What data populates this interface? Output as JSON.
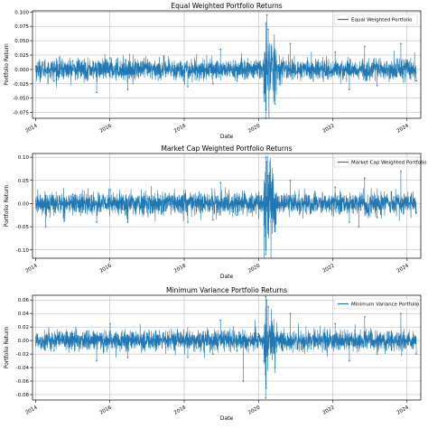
{
  "chart_data": [
    {
      "type": "line",
      "title": "Equal Weighted Portfolio Returns",
      "xlabel": "Date",
      "ylabel": "Portfolio Return",
      "legend": "Equal Weighted Portfolio",
      "legend_position": "top-right",
      "grid": true,
      "line_color": "#1f77b4",
      "x_range": [
        "2013-12-01",
        "2024-05-15"
      ],
      "x_ticks": [
        "2014",
        "2016",
        "2018",
        "2020",
        "2022",
        "2024"
      ],
      "ylim": [
        -0.085,
        0.102
      ],
      "y_ticks": [
        "0.100",
        "0.075",
        "0.050",
        "0.025",
        "0.000",
        "-0.025",
        "-0.050",
        "-0.075"
      ],
      "y_tick_values": [
        0.1,
        0.075,
        0.05,
        0.025,
        0.0,
        -0.025,
        -0.05,
        -0.075
      ],
      "series": [
        {
          "name": "Equal Weighted Portfolio",
          "x": [
            "2014-01-02",
            "2014-07-01",
            "2015-01-02",
            "2015-08-24",
            "2016-01-04",
            "2016-06-24",
            "2017-01-03",
            "2017-07-03",
            "2018-02-05",
            "2018-10-10",
            "2018-12-24",
            "2019-06-03",
            "2019-12-31",
            "2020-02-24",
            "2020-03-09",
            "2020-03-12",
            "2020-03-13",
            "2020-03-16",
            "2020-03-24",
            "2020-04-06",
            "2020-06-11",
            "2020-11-09",
            "2021-06-01",
            "2022-01-24",
            "2022-06-13",
            "2022-11-10",
            "2023-03-13",
            "2023-11-01",
            "2024-04-01"
          ],
          "values": [
            0.005,
            -0.02,
            0.015,
            -0.04,
            0.02,
            -0.035,
            0.01,
            -0.012,
            -0.03,
            -0.025,
            0.035,
            -0.02,
            0.01,
            -0.04,
            -0.055,
            -0.085,
            0.08,
            -0.07,
            0.095,
            0.07,
            -0.06,
            0.045,
            -0.015,
            0.03,
            -0.035,
            0.04,
            -0.028,
            0.045,
            -0.02
          ]
        }
      ]
    },
    {
      "type": "line",
      "title": "Market Cap Weighted Portfolio Returns",
      "xlabel": "Date",
      "ylabel": "Portfolio Return",
      "legend": "Market Cap Weighted Portfolio",
      "legend_position": "top-right",
      "grid": true,
      "line_color": "#1f77b4",
      "x_range": [
        "2013-12-01",
        "2024-05-15"
      ],
      "x_ticks": [
        "2014",
        "2016",
        "2018",
        "2020",
        "2022",
        "2024"
      ],
      "ylim": [
        -0.118,
        0.108
      ],
      "y_ticks": [
        "0.10",
        "0.05",
        "0.00",
        "-0.05",
        "-0.10"
      ],
      "y_tick_values": [
        0.1,
        0.05,
        0.0,
        -0.05,
        -0.1
      ],
      "series": [
        {
          "name": "Market Cap Weighted Portfolio",
          "x": [
            "2014-01-02",
            "2014-04-10",
            "2015-01-02",
            "2015-08-24",
            "2016-01-04",
            "2016-06-24",
            "2017-01-03",
            "2017-07-03",
            "2018-02-05",
            "2018-10-10",
            "2018-12-24",
            "2019-06-03",
            "2019-12-31",
            "2020-02-24",
            "2020-03-09",
            "2020-03-12",
            "2020-03-13",
            "2020-03-16",
            "2020-03-24",
            "2020-04-06",
            "2020-06-11",
            "2020-11-09",
            "2021-06-01",
            "2022-01-24",
            "2022-06-13",
            "2022-09-13",
            "2022-11-10",
            "2023-03-13",
            "2023-11-01",
            "2024-04-01"
          ],
          "values": [
            0.005,
            -0.05,
            0.02,
            -0.04,
            0.03,
            -0.04,
            0.01,
            -0.015,
            -0.04,
            -0.035,
            0.045,
            -0.025,
            0.015,
            -0.045,
            -0.07,
            -0.11,
            0.1,
            -0.1,
            0.09,
            0.06,
            -0.06,
            0.05,
            -0.02,
            0.035,
            -0.04,
            -0.05,
            0.055,
            -0.03,
            0.07,
            -0.02
          ]
        }
      ]
    },
    {
      "type": "line",
      "title": "Minimum Variance Portfolio Returns",
      "xlabel": "Date",
      "ylabel": "Portfolio Return",
      "legend": "Minimum Variance Portfolio",
      "legend_position": "top-right",
      "grid": true,
      "line_color": "#1f77b4",
      "x_range": [
        "2013-12-01",
        "2024-05-15"
      ],
      "x_ticks": [
        "2014",
        "2016",
        "2018",
        "2020",
        "2022",
        "2024"
      ],
      "ylim": [
        -0.088,
        0.067
      ],
      "y_ticks": [
        "0.06",
        "0.04",
        "0.02",
        "0.00",
        "-0.02",
        "-0.04",
        "-0.06",
        "-0.08"
      ],
      "y_tick_values": [
        0.06,
        0.04,
        0.02,
        0.0,
        -0.02,
        -0.04,
        -0.06,
        -0.08
      ],
      "series": [
        {
          "name": "Minimum Variance Portfolio",
          "x": [
            "2014-01-02",
            "2014-07-01",
            "2015-01-02",
            "2015-08-24",
            "2016-01-04",
            "2016-06-24",
            "2017-01-03",
            "2017-07-03",
            "2018-02-05",
            "2018-10-10",
            "2018-12-24",
            "2019-06-03",
            "2019-08-05",
            "2019-12-31",
            "2020-02-24",
            "2020-03-09",
            "2020-03-12",
            "2020-03-13",
            "2020-03-16",
            "2020-03-24",
            "2020-04-06",
            "2020-06-11",
            "2020-11-09",
            "2021-06-01",
            "2022-01-24",
            "2022-06-13",
            "2022-11-10",
            "2023-03-13",
            "2023-11-01",
            "2024-04-01"
          ],
          "values": [
            0.005,
            -0.015,
            0.01,
            -0.03,
            0.025,
            -0.025,
            0.01,
            -0.01,
            -0.025,
            -0.02,
            0.03,
            -0.015,
            -0.06,
            0.01,
            -0.03,
            -0.05,
            -0.085,
            0.065,
            -0.07,
            0.06,
            0.05,
            -0.04,
            0.04,
            -0.012,
            0.025,
            -0.03,
            0.035,
            -0.02,
            0.04,
            -0.02
          ]
        }
      ]
    }
  ]
}
